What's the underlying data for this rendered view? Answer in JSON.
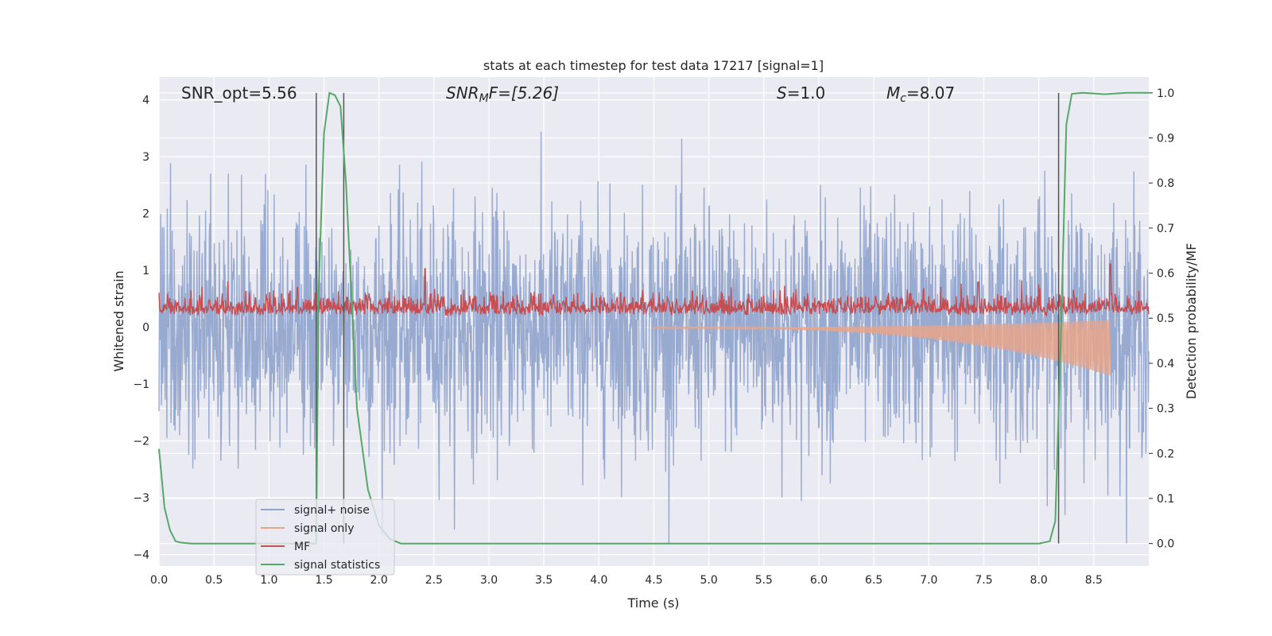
{
  "chart_data": {
    "type": "line",
    "title": "stats at each timestep for test data 17217 [signal=1]",
    "xlabel": "Time (s)",
    "ylabel": "Whitened strain",
    "ylabel_right": "Detection probability/MF",
    "xlim": [
      0,
      9.0
    ],
    "ylim": [
      -4.2,
      4.4
    ],
    "ylim_right": [
      -0.05,
      1.035
    ],
    "x_ticks": [
      "0.0",
      "0.5",
      "1.0",
      "1.5",
      "2.0",
      "2.5",
      "3.0",
      "3.5",
      "4.0",
      "4.5",
      "5.0",
      "5.5",
      "6.0",
      "6.5",
      "7.0",
      "7.5",
      "8.0",
      "8.5"
    ],
    "y_ticks": [
      "−4",
      "−3",
      "−2",
      "−1",
      "0",
      "1",
      "2",
      "3",
      "4"
    ],
    "y2_ticks": [
      "0.0",
      "0.1",
      "0.2",
      "0.3",
      "0.4",
      "0.5",
      "0.6",
      "0.7",
      "0.8",
      "0.9",
      "1.0"
    ],
    "grid": true,
    "legend_position": "lower-left",
    "annotations": {
      "snr_opt": "SNR_opt=5.56",
      "snr_mf_prefix": "SNR",
      "snr_mf_sub": "M",
      "snr_mf_suffix": "F=[5.26]",
      "s_prefix": "S",
      "s_suffix": "=1.0",
      "mc_prefix": "M",
      "mc_sub": "c",
      "mc_suffix": "=8.07"
    },
    "vertical_lines_x": [
      1.43,
      1.68,
      8.18
    ],
    "series": [
      {
        "name": "signal+ noise",
        "color": "#8fa3cc",
        "axis": "left",
        "kind": "noise",
        "x_range": [
          0,
          9.0
        ],
        "envelope": [
          -2.6,
          2.6
        ],
        "peak_max": 4.0,
        "peak_min": -3.8
      },
      {
        "name": "signal only",
        "color": "#e8a58a",
        "axis": "left",
        "kind": "chirp",
        "x_range": [
          4.5,
          8.65
        ],
        "amplitude_start": 0.02,
        "amplitude_end": 0.85
      },
      {
        "name": "MF",
        "color": "#c44e52",
        "axis": "right",
        "kind": "mf",
        "baseline": 0.505,
        "band_upper": 0.56,
        "peaks": [
          [
            2.42,
            0.61
          ],
          [
            8.65,
            0.62
          ],
          [
            7.45,
            0.58
          ],
          [
            4.85,
            0.56
          ]
        ]
      },
      {
        "name": "signal statistics",
        "color": "#55a868",
        "axis": "right",
        "x": [
          0.0,
          0.05,
          0.1,
          0.15,
          0.2,
          0.3,
          0.5,
          1.0,
          1.3,
          1.43,
          1.45,
          1.5,
          1.55,
          1.6,
          1.65,
          1.7,
          1.75,
          1.8,
          1.9,
          2.0,
          2.1,
          2.2,
          2.5,
          3.0,
          4.0,
          5.0,
          6.0,
          7.0,
          7.5,
          8.0,
          8.1,
          8.15,
          8.2,
          8.25,
          8.3,
          8.4,
          8.6,
          8.8,
          9.0
        ],
        "y": [
          0.21,
          0.08,
          0.03,
          0.005,
          0.002,
          0.0,
          0.0,
          0.0,
          0.0,
          0.0,
          0.55,
          0.91,
          1.0,
          0.995,
          0.97,
          0.8,
          0.55,
          0.3,
          0.12,
          0.04,
          0.01,
          0.0,
          0.0,
          0.0,
          0.0,
          0.0,
          0.0,
          0.0,
          0.0,
          0.0,
          0.005,
          0.05,
          0.45,
          0.93,
          0.998,
          1.0,
          0.997,
          1.0,
          1.0
        ]
      }
    ]
  }
}
